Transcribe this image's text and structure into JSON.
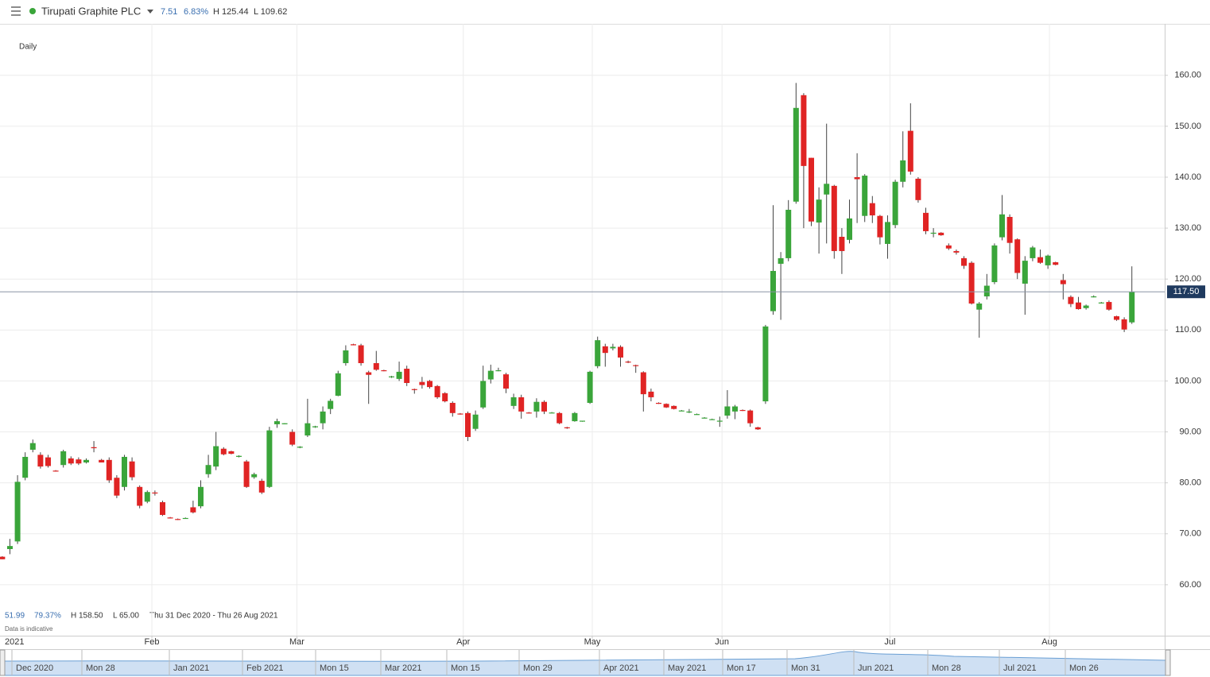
{
  "header": {
    "title": "Tirupati Graphite PLC",
    "change": "7.51",
    "change_pct": "6.83%",
    "high": "H 125.44",
    "low": "L 109.62"
  },
  "chart_data": {
    "type": "candlestick",
    "interval": "Daily",
    "x": [
      0,
      1,
      2,
      3,
      4,
      5,
      6,
      7,
      8,
      9,
      10,
      11,
      12,
      13,
      14,
      15,
      16,
      17,
      18,
      19,
      20,
      21,
      22,
      23,
      24,
      25,
      26,
      27,
      28,
      29,
      30,
      31,
      32,
      33,
      34,
      35,
      36,
      37,
      38,
      39,
      40,
      41,
      42,
      43,
      44,
      45,
      46,
      47,
      48,
      49,
      50,
      51,
      52,
      53,
      54,
      55,
      56,
      57,
      58,
      59,
      60,
      61,
      62,
      63,
      64,
      65,
      66,
      67,
      68,
      69,
      70,
      71,
      72,
      73,
      74,
      75,
      76,
      77,
      78,
      79,
      80,
      81,
      82,
      83,
      84,
      85,
      86,
      87,
      88,
      89,
      90,
      91,
      92,
      93,
      94,
      95,
      96,
      97,
      98,
      99,
      100,
      101,
      102,
      103,
      104,
      105,
      106,
      107,
      108,
      109,
      110,
      111,
      112,
      113,
      114,
      115,
      116,
      117,
      118,
      119,
      120,
      121,
      122,
      123,
      124,
      125,
      126,
      127,
      128,
      129,
      130,
      131,
      132,
      133,
      134,
      135,
      136,
      137,
      138,
      139,
      140,
      141,
      142,
      143,
      144,
      145,
      146,
      147,
      148
    ],
    "open": [
      65.5,
      67,
      68.5,
      81,
      86.5,
      85.5,
      85,
      82.4,
      83.5,
      84.8,
      84.6,
      84,
      87,
      84.5,
      84.5,
      81,
      79.2,
      84.2,
      79.2,
      76.3,
      78.1,
      76.2,
      73.2,
      72.9,
      73,
      75.2,
      75.4,
      81.7,
      83.2,
      86.7,
      86.2,
      85.1,
      84.2,
      81.1,
      80.4,
      79.2,
      91.5,
      91.5,
      90,
      86.9,
      89.3,
      90.9,
      91.7,
      94.5,
      97.1,
      103.5,
      107.2,
      107,
      101.7,
      103.5,
      102.1,
      100.8,
      100.4,
      102.4,
      98.4,
      99.8,
      100,
      99,
      97.6,
      95.7,
      93.6,
      93.7,
      90.6,
      94.8,
      100.3,
      102,
      101.3,
      95.1,
      96.8,
      93.8,
      94,
      95.9,
      93.8,
      93.7,
      90.9,
      92.1,
      92.1,
      95.7,
      102.9,
      106.8,
      106.4,
      106.7,
      103.8,
      103.1,
      101.7,
      97.9,
      95.7,
      95.5,
      95.1,
      94.2,
      93.8,
      93.5,
      92.8,
      92.5,
      92.1,
      93.2,
      94,
      94.3,
      94.2,
      90.9,
      96,
      113.7,
      123,
      124.1,
      135.2,
      156.1,
      143.8,
      131.1,
      136.6,
      138.3,
      128.3,
      127.7,
      140,
      132.4,
      134.9,
      132.4,
      126.9,
      130.6,
      139.1,
      149.1,
      139.7,
      133,
      128.9,
      129.1,
      126.6,
      125.5,
      124.1,
      123.2,
      114,
      116.6,
      119.4,
      128.2,
      132.2,
      127.8,
      119.1,
      124.1,
      124.3,
      122.7,
      123.3,
      119.8,
      116.5,
      115.4,
      114.3,
      116.5,
      115.3,
      115.5,
      112.7,
      112.1,
      111.5
    ],
    "high": [
      65.6,
      69,
      81.5,
      86,
      88.5,
      86,
      85.5,
      82.5,
      86.5,
      85.2,
      85,
      84.8,
      88.2,
      84.7,
      85,
      81.5,
      85.5,
      85,
      79.5,
      78.5,
      78.5,
      76.5,
      73.3,
      73,
      73.2,
      76.5,
      80.5,
      85.5,
      90,
      87,
      86.3,
      85.4,
      84.5,
      82,
      80.8,
      91,
      92.6,
      91.7,
      90.5,
      87.2,
      96.5,
      91.2,
      95,
      96.5,
      102,
      107,
      107.3,
      107.3,
      102,
      105.9,
      102.2,
      101,
      103.8,
      103,
      98.5,
      100.8,
      100.2,
      99.2,
      97.8,
      96,
      93.7,
      94,
      94.2,
      103,
      103.2,
      102.6,
      101.6,
      97.5,
      97.3,
      93.9,
      96.6,
      96.2,
      93.9,
      93.9,
      91,
      93.9,
      92.2,
      102,
      108.7,
      107.3,
      107.3,
      107,
      104,
      103.2,
      101.9,
      98.5,
      95.8,
      95.6,
      95.2,
      94.3,
      94.5,
      93.6,
      92.9,
      92.6,
      93,
      98.2,
      95.3,
      94.4,
      94.4,
      91,
      111,
      134.5,
      125.3,
      135.5,
      158.5,
      156.5,
      143.8,
      138,
      150.5,
      138.5,
      130,
      135.6,
      144.7,
      140.6,
      136.3,
      132.6,
      132.5,
      139.5,
      149,
      154.5,
      140,
      134,
      130,
      129.2,
      127,
      125.8,
      124.5,
      123.5,
      115.5,
      121,
      127,
      136.5,
      132.7,
      128,
      124.5,
      126.5,
      125.8,
      124.8,
      123.4,
      121,
      116.8,
      116.5,
      115,
      116.8,
      115.5,
      115.8,
      112.8,
      112.5,
      122.5
    ],
    "low": [
      65,
      66,
      68,
      80.5,
      86,
      82.8,
      83,
      82.2,
      83,
      83.5,
      83.5,
      83.8,
      86,
      84,
      80,
      77,
      78.5,
      80.5,
      75,
      76,
      77.5,
      73.5,
      73,
      72.7,
      73,
      74,
      75,
      81,
      82.5,
      85.4,
      85.6,
      85,
      79,
      80.8,
      77.8,
      79,
      90.8,
      91.5,
      87.2,
      86.8,
      89,
      90.8,
      90.5,
      93.5,
      97,
      103,
      107,
      103,
      95.5,
      102,
      101.9,
      100.6,
      100,
      99,
      97.5,
      98.5,
      98.5,
      96.5,
      95.8,
      93,
      93.4,
      88.2,
      90.2,
      94.5,
      99.5,
      101.9,
      97.6,
      94.5,
      92.6,
      93.6,
      92.8,
      93.5,
      93.7,
      91.5,
      90.6,
      92,
      92,
      95.5,
      102.5,
      102.8,
      106,
      102.8,
      103.5,
      101.6,
      94,
      96,
      95.5,
      94.7,
      94.4,
      94.1,
      93.7,
      93.4,
      92.7,
      92.4,
      91,
      92.6,
      92.5,
      94.1,
      91,
      90.4,
      95.5,
      113,
      112,
      123.5,
      134.8,
      130,
      130.4,
      125,
      127,
      124,
      121,
      127,
      131,
      131.2,
      131,
      126.8,
      124,
      130,
      138,
      140.5,
      135,
      128.8,
      128.2,
      128.5,
      125.7,
      124.8,
      122,
      115,
      108.5,
      116,
      119,
      127.6,
      125,
      120,
      113,
      123.5,
      123,
      122,
      122.7,
      116,
      114.5,
      114,
      114,
      116.4,
      115.2,
      113.8,
      111.8,
      109.6,
      111.2
    ],
    "close": [
      65,
      67.6,
      80.2,
      85.1,
      87.8,
      83.2,
      83.3,
      82.3,
      86.2,
      83.8,
      83.8,
      84.5,
      86.8,
      84,
      80.5,
      77.5,
      85.1,
      81.1,
      75.5,
      78.2,
      78,
      73.7,
      73.1,
      72.8,
      73.1,
      74.2,
      79.2,
      83.5,
      87.2,
      85.6,
      85.7,
      85.3,
      79.2,
      81.7,
      78.1,
      90.3,
      92.1,
      91.7,
      87.5,
      87.1,
      91.7,
      91.1,
      94,
      96.1,
      101.5,
      106,
      107,
      103.5,
      101.2,
      102.2,
      102,
      100.9,
      101.8,
      99.6,
      98.3,
      99.2,
      98.8,
      96.8,
      96,
      93.7,
      93.5,
      89,
      93.4,
      100,
      102,
      102.1,
      98.5,
      96.8,
      94,
      93.7,
      95.9,
      94,
      93.8,
      91.7,
      90.8,
      93.7,
      92.2,
      101.8,
      108,
      105.5,
      106.7,
      104.6,
      103.7,
      103,
      97.4,
      96.8,
      95.6,
      94.8,
      94.5,
      94.2,
      94,
      93.5,
      92.8,
      92.5,
      92.2,
      95,
      95,
      94.2,
      91.7,
      90.5,
      110.7,
      121.6,
      124.1,
      133.6,
      153.6,
      142.2,
      131.3,
      135.6,
      138.7,
      125.5,
      125.5,
      131.9,
      139.6,
      140.3,
      132.5,
      128.2,
      131.2,
      139.1,
      143.3,
      141.1,
      135.5,
      129.4,
      129.1,
      128.6,
      126,
      125.2,
      122.6,
      115.2,
      115.2,
      118.7,
      126.6,
      132.7,
      127.1,
      121.2,
      123.6,
      126.2,
      123.2,
      124.6,
      122.8,
      119,
      115.1,
      114.1,
      114.8,
      116.6,
      115.4,
      114,
      112,
      110.1,
      117.5
    ],
    "up_color": "#3aa53a",
    "down_color": "#e02424",
    "xlim": [
      -0.3,
      152.3
    ],
    "xticks": [
      {
        "value": 19.6,
        "label": "Feb"
      },
      {
        "value": 38.6,
        "label": "Mar"
      },
      {
        "value": 60.4,
        "label": "Apr"
      },
      {
        "value": 77.3,
        "label": "May"
      },
      {
        "value": 94.3,
        "label": "Jun"
      },
      {
        "value": 116.3,
        "label": "Jul"
      },
      {
        "value": 137.2,
        "label": "Aug"
      }
    ],
    "xaxis_year": "2021",
    "ylim": [
      50,
      170.1
    ],
    "yticks": [
      {
        "value": 60,
        "label": "60.00"
      },
      {
        "value": 70,
        "label": "70.00"
      },
      {
        "value": 80,
        "label": "80.00"
      },
      {
        "value": 90,
        "label": "90.00"
      },
      {
        "value": 100,
        "label": "100.00"
      },
      {
        "value": 110,
        "label": "110.00"
      },
      {
        "value": 120,
        "label": "120.00"
      },
      {
        "value": 130,
        "label": "130.00"
      },
      {
        "value": 140,
        "label": "140.00"
      },
      {
        "value": 150,
        "label": "150.00"
      },
      {
        "value": 160,
        "label": "160.00"
      }
    ],
    "grid": true,
    "price_line": {
      "value": 117.5,
      "label": "117.50"
    },
    "summary": {
      "change": "51.99",
      "change_pct": "79.37%",
      "high": "H 158.50",
      "low": "L 65.00",
      "range": "Thu 31 Dec 2020 - Thu 26 Aug 2021",
      "note": "Data is indicative"
    },
    "navigator_labels": [
      "Dec 2020",
      "Mon 28",
      "Jan 2021",
      "Feb 2021",
      "Mon 15",
      "Mar 2021",
      "Mon 15",
      "Mon 29",
      "Apr 2021",
      "May 2021",
      "Mon 17",
      "Mon 31",
      "Jun 2021",
      "Mon 28",
      "Jul 2021",
      "Mon 26"
    ]
  }
}
